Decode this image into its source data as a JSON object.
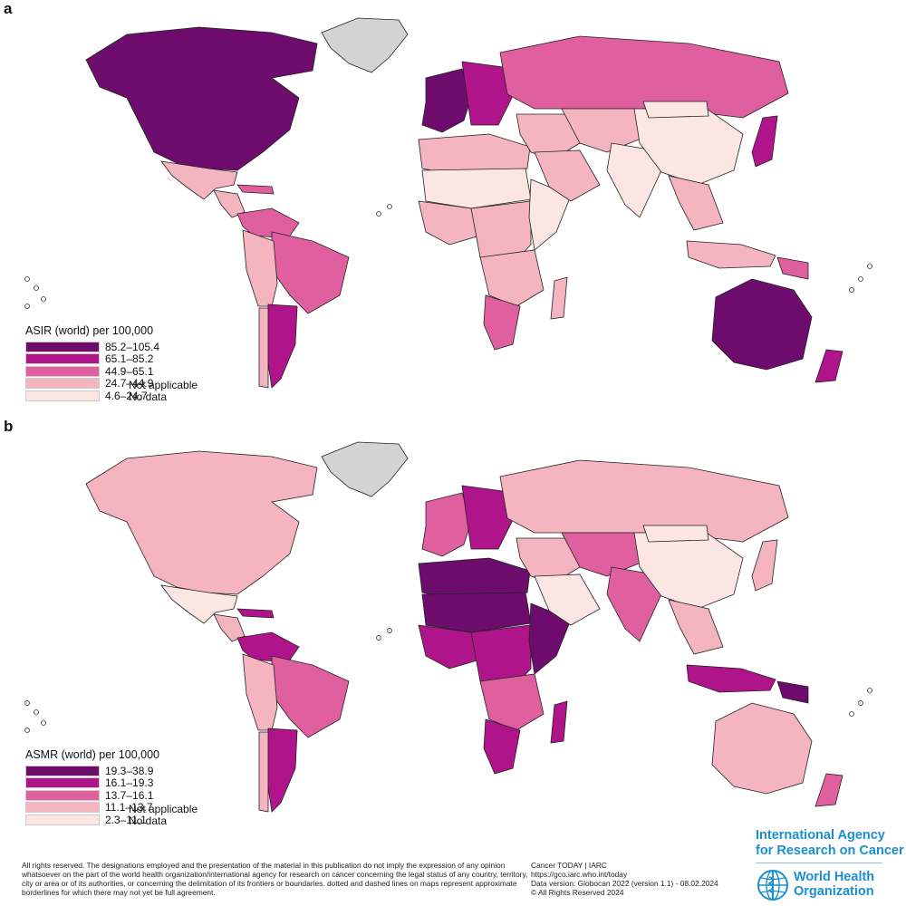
{
  "panels": [
    {
      "label": "a",
      "legend_title": "ASIR (world) per 100,000",
      "classes": [
        {
          "range": "85.2–105.4",
          "color": "#6e0c6e"
        },
        {
          "range": "65.1–85.2",
          "color": "#b0148a"
        },
        {
          "range": "44.9–65.1",
          "color": "#e0609f"
        },
        {
          "range": "24.7–44.9",
          "color": "#f5b5c0"
        },
        {
          "range": "4.6–24.7",
          "color": "#fce6e3"
        }
      ],
      "not_applicable": "Not applicable",
      "no_data": "No data"
    },
    {
      "label": "b",
      "legend_title": "ASMR (world) per 100,000",
      "classes": [
        {
          "range": "19.3–38.9",
          "color": "#6e0c6e"
        },
        {
          "range": "16.1–19.3",
          "color": "#b0148a"
        },
        {
          "range": "13.7–16.1",
          "color": "#e0609f"
        },
        {
          "range": "11.1–13.7",
          "color": "#f5b5c0"
        },
        {
          "range": "2.3–11.1",
          "color": "#fce6e3"
        }
      ],
      "not_applicable": "Not applicable",
      "no_data": "No data"
    }
  ],
  "colors": {
    "not_applicable": "#808080",
    "no_data": "#d3d3d3",
    "who_blue": "#1a8fd1"
  },
  "map_fills": {
    "a": {
      "north_america": 0,
      "greenland": "nd",
      "mexico": 3,
      "central_america": 3,
      "caribbean": 2,
      "south_america_north": 2,
      "brazil": 2,
      "andes": 3,
      "argentina": 1,
      "chile": 3,
      "western_europe": 0,
      "eastern_europe": 1,
      "russia": 2,
      "north_africa": 3,
      "sahel": 4,
      "west_africa": 3,
      "central_africa": 3,
      "east_africa": 4,
      "southern_africa": 3,
      "south_africa": 2,
      "madagascar": 3,
      "middle_east": 3,
      "arabia": 3,
      "central_asia": 3,
      "india": 4,
      "china": 4,
      "mongolia": 4,
      "southeast_asia": 3,
      "japan": 1,
      "indonesia": 3,
      "australia": 0,
      "new_zealand": 1,
      "papua": 2
    },
    "b": {
      "north_america": 3,
      "greenland": "nd",
      "mexico": 4,
      "central_america": 3,
      "caribbean": 1,
      "south_america_north": 1,
      "brazil": 2,
      "andes": 3,
      "argentina": 1,
      "chile": 3,
      "western_europe": 2,
      "eastern_europe": 1,
      "russia": 3,
      "north_africa": 0,
      "sahel": 0,
      "west_africa": 1,
      "central_africa": 1,
      "east_africa": 0,
      "southern_africa": 2,
      "south_africa": 1,
      "madagascar": 1,
      "middle_east": 3,
      "arabia": 4,
      "central_asia": 2,
      "india": 2,
      "china": 4,
      "mongolia": 4,
      "southeast_asia": 3,
      "japan": 3,
      "indonesia": 1,
      "australia": 3,
      "new_zealand": 2,
      "papua": 0
    }
  },
  "footer": {
    "disclaimer": "All rights reserved. The designations employed and the presentation of the material in this publication do not imply the expression of any opinion whatsoever on the part of the world health organization/international agency for research on cancer concerning the legal status of any country, territory, city or area or of its authorities, or concerning the delimitation of its frontiers or boundaries. dotted and dashed lines on maps represent approximate borderlines for which there may not yet be full agreement.",
    "source_lines": [
      "Cancer TODAY | IARC",
      "https://gco.iarc.who.int/today",
      "Data version: Globocan 2022 (version 1.1) - 08.02.2024",
      "© All Rights Reserved 2024"
    ],
    "iarc_lines": [
      "International Agency",
      "for Research on Cancer"
    ],
    "who_lines": [
      "World Health",
      "Organization"
    ]
  }
}
